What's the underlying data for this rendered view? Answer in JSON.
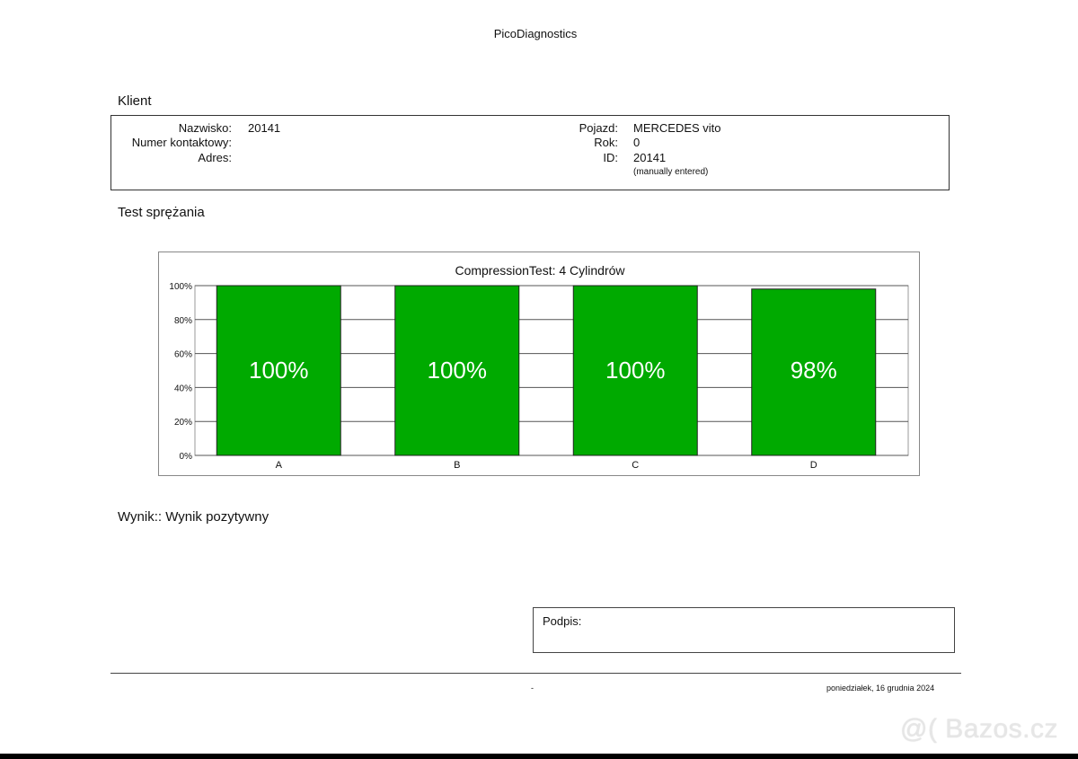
{
  "header": {
    "title": "PicoDiagnostics"
  },
  "client_section": {
    "heading": "Klient",
    "fields_left": [
      {
        "label": "Nazwisko:",
        "value": "20141"
      },
      {
        "label": "Numer kontaktowy:",
        "value": ""
      },
      {
        "label": "Adres:",
        "value": ""
      }
    ],
    "fields_right": [
      {
        "label": "Pojazd:",
        "value": "MERCEDES vito"
      },
      {
        "label": "Rok:",
        "value": "0"
      },
      {
        "label": "ID:",
        "value": "20141"
      }
    ],
    "id_note": "(manually entered)"
  },
  "test_section": {
    "heading": "Test sprężania"
  },
  "chart_data": {
    "type": "bar",
    "title": "CompressionTest: 4 Cylindrów",
    "categories": [
      "A",
      "B",
      "C",
      "D"
    ],
    "values": [
      100,
      100,
      100,
      98
    ],
    "data_labels": [
      "100%",
      "100%",
      "100%",
      "98%"
    ],
    "yticks": [
      "0%",
      "20%",
      "40%",
      "60%",
      "80%",
      "100%"
    ],
    "ylim": [
      0,
      100
    ],
    "grid": true,
    "bar_color": "#00aa00",
    "label_color": "#ffffff"
  },
  "result": {
    "text": "Wynik:: Wynik pozytywny"
  },
  "signature": {
    "label": "Podpis:"
  },
  "footer": {
    "center": "-",
    "date": "poniedziałek, 16 grudnia 2024"
  },
  "watermark": {
    "text": "@( Bazos.cz"
  }
}
